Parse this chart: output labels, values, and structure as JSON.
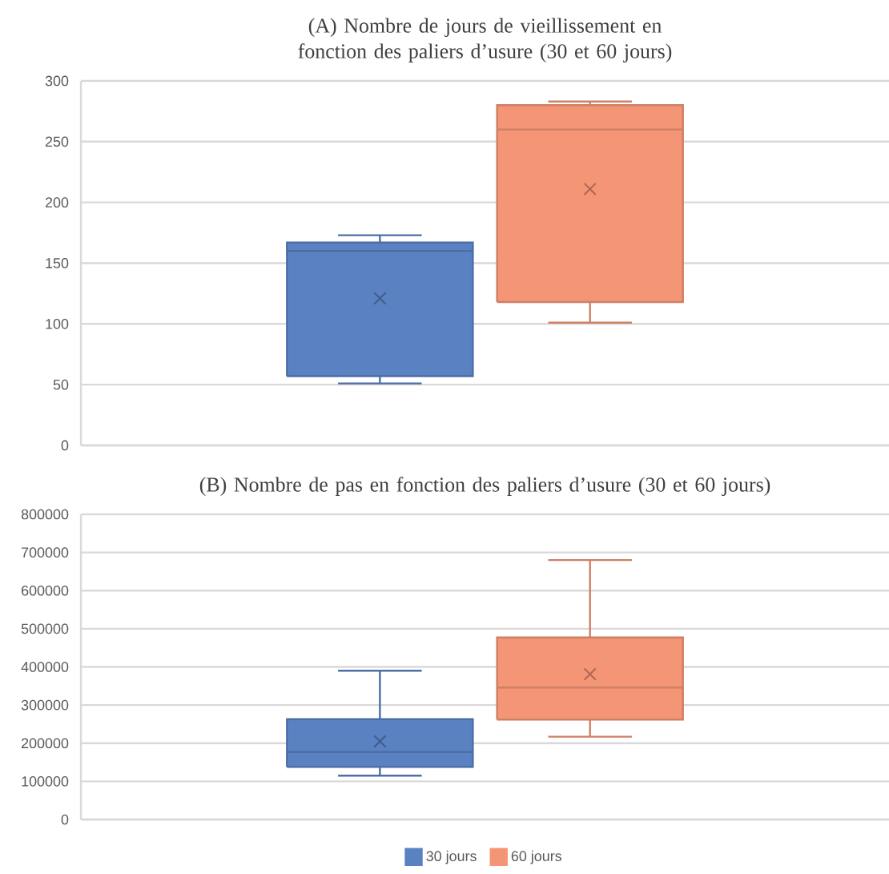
{
  "chart_data": [
    {
      "type": "box",
      "title": "(A) Nombre de jours de vieillissement en fonction des paliers d’usure (30 et 60 jours)",
      "categories": [
        null
      ],
      "ylim": [
        0,
        300
      ],
      "yticks": [
        0,
        50,
        100,
        150,
        200,
        250,
        300
      ],
      "grid": "y",
      "tick_labels": "y",
      "marker": "cross",
      "series": [
        {
          "color": "#5a82c2",
          "boxes": [
            {
              "low": 51,
              "q1": 57,
              "median": 160,
              "q3": 167,
              "high": 173,
              "mean": 121
            }
          ]
        },
        {
          "color": "#f49576",
          "boxes": [
            {
              "low": 101,
              "q1": 118,
              "median": 260,
              "q3": 280,
              "high": 283,
              "mean": 211
            }
          ]
        }
      ]
    },
    {
      "type": "box",
      "title": "(B) Nombre de pas en fonction des paliers d’usure (30 et 60 jours)",
      "categories": [
        null
      ],
      "ylim": [
        0,
        800000
      ],
      "yticks": [
        0,
        100000,
        200000,
        300000,
        400000,
        500000,
        600000,
        700000,
        800000
      ],
      "grid": "y",
      "tick_labels": "y",
      "marker": "cross",
      "legend": "bottom",
      "series": [
        {
          "name": "30 jours",
          "color": "#5a82c2",
          "boxes": [
            {
              "low": 115000,
              "q1": 138000,
              "median": 177000,
              "q3": 263000,
              "high": 390000,
              "mean": 205000
            }
          ]
        },
        {
          "name": "60 jours",
          "color": "#f49576",
          "boxes": [
            {
              "low": 217000,
              "q1": 262000,
              "median": 346000,
              "q3": 477000,
              "high": 680000,
              "mean": 381000
            }
          ]
        }
      ]
    }
  ]
}
